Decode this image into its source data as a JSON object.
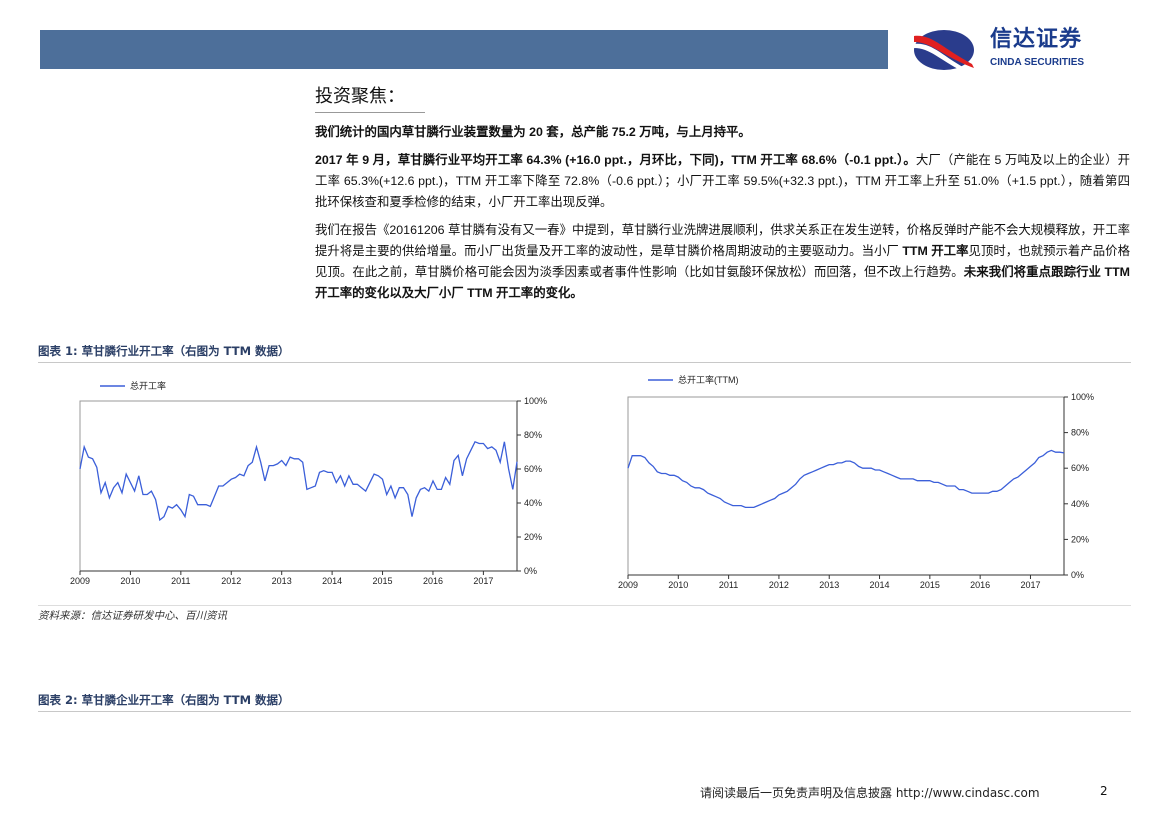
{
  "header": {
    "logo_cn": "信达证券",
    "logo_en": "CINDA SECURITIES",
    "brand_color": "#4d6f9a"
  },
  "section_title": "投资聚焦：",
  "paragraphs": {
    "p1": "我们统计的国内草甘膦行业装置数量为 20 套，总产能 75.2 万吨，与上月持平。",
    "p2_bold": "2017 年 9 月，草甘膦行业平均开工率 64.3% (+16.0 ppt.，月环比，下同)，TTM 开工率 68.6%（-0.1 ppt.）。",
    "p2_rest": "大厂（产能在 5 万吨及以上的企业）开工率 65.3%(+12.6 ppt.)，TTM 开工率下降至 72.8%（-0.6 ppt.）；小厂开工率 59.5%(+32.3 ppt.)，TTM 开工率上升至 51.0%（+1.5 ppt.），随着第四批环保核查和夏季检修的结束，小厂开工率出现反弹。",
    "p3_a": "我们在报告《20161206 草甘膦有没有又一春》中提到，草甘膦行业洗牌进展顺利，供求关系正在发生逆转，价格反弹时产能不会大规模释放，开工率提升将是主要的供给增量。而小厂出货量及开工率的波动性，是草甘膦价格周期波动的主要驱动力。当小厂 ",
    "p3_b": "TTM 开工率",
    "p3_c": "见顶时，也就预示着产品价格见顶。在此之前，草甘膦价格可能会因为淡季因素或者事件性影响（比如甘氨酸环保放松）而回落，但不改上行趋势。",
    "p3_d": "未来我们将重点跟踪行业 TTM 开工率的变化以及大厂小厂 TTM 开工率的变化。"
  },
  "figure1": {
    "caption": "图表 1:  草甘膦行业开工率（右图为 TTM 数据）",
    "source": "资料来源：信达证券研发中心、百川资讯"
  },
  "figure2": {
    "caption": "图表 2:  草甘膦企业开工率（右图为 TTM 数据）"
  },
  "footer": {
    "disclaimer": "请阅读最后一页免责声明及信息披露 http://www.cindasc.com",
    "page": "2"
  },
  "chart_data": [
    {
      "type": "line",
      "line_color": "#3b5fd9",
      "series": [
        {
          "name": "总开工率",
          "start": "2009-01",
          "frequency": "monthly",
          "unit": "%",
          "values": [
            60,
            73,
            67,
            66,
            61,
            46,
            52,
            43,
            49,
            52,
            46,
            57,
            52,
            47,
            56,
            45,
            45,
            47,
            42,
            30,
            32,
            38,
            37,
            39,
            36,
            32,
            45,
            44,
            39,
            39,
            39,
            38,
            44,
            50,
            50,
            52,
            54,
            55,
            57,
            56,
            62,
            64,
            73,
            64,
            53,
            62,
            62,
            63,
            65,
            62,
            67,
            66,
            66,
            64,
            48,
            49,
            50,
            58,
            59,
            58,
            58,
            52,
            56,
            50,
            56,
            51,
            51,
            49,
            47,
            52,
            57,
            56,
            54,
            45,
            50,
            43,
            49,
            49,
            45,
            32,
            43,
            48,
            49,
            47,
            53,
            48,
            48,
            55,
            51,
            65,
            68,
            56,
            66,
            71,
            76,
            75,
            75,
            72,
            73,
            71,
            64,
            76,
            60,
            48,
            64.3
          ]
        }
      ],
      "x_ticks": [
        "2009",
        "2010",
        "2011",
        "2012",
        "2013",
        "2014",
        "2015",
        "2016",
        "2017"
      ],
      "y_ticks": [
        "0%",
        "20%",
        "40%",
        "60%",
        "80%",
        "100%"
      ],
      "ylim": [
        0,
        100
      ],
      "y_axis": "right",
      "legend": "top-left",
      "grid": false
    },
    {
      "type": "line",
      "line_color": "#3b5fd9",
      "series": [
        {
          "name": "总开工率(TTM)",
          "start": "2009-01",
          "frequency": "monthly",
          "unit": "%",
          "values": [
            60,
            67,
            67,
            67,
            66,
            63,
            61,
            58,
            57,
            57,
            56,
            56,
            55,
            53,
            52,
            50,
            49,
            49,
            48,
            46,
            45,
            44,
            43,
            41,
            40,
            39,
            39,
            39,
            38,
            38,
            38,
            39,
            40,
            41,
            42,
            43,
            45,
            46,
            47,
            49,
            51,
            54,
            56,
            57,
            58,
            59,
            60,
            61,
            62,
            62,
            63,
            63,
            64,
            64,
            63,
            61,
            60,
            60,
            60,
            59,
            59,
            58,
            57,
            56,
            55,
            54,
            54,
            54,
            54,
            53,
            53,
            53,
            53,
            52,
            52,
            51,
            50,
            50,
            50,
            48,
            48,
            47,
            46,
            46,
            46,
            46,
            46,
            47,
            47,
            48,
            50,
            52,
            54,
            55,
            57,
            59,
            61,
            63,
            66,
            67,
            69,
            70,
            69,
            69,
            68.6
          ]
        }
      ],
      "x_ticks": [
        "2009",
        "2010",
        "2011",
        "2012",
        "2013",
        "2014",
        "2015",
        "2016",
        "2017"
      ],
      "y_ticks": [
        "0%",
        "20%",
        "40%",
        "60%",
        "80%",
        "100%"
      ],
      "ylim": [
        0,
        100
      ],
      "y_axis": "right",
      "legend": "top-left",
      "grid": false
    }
  ]
}
